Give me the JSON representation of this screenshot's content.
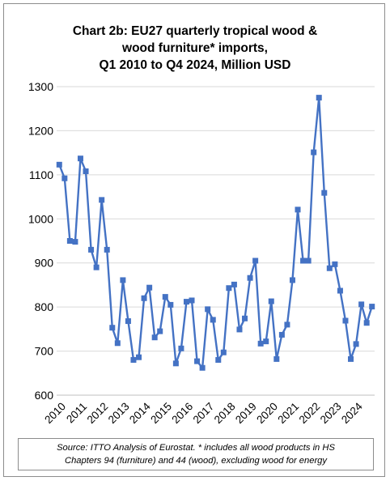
{
  "chart_data": {
    "type": "line",
    "title_lines": [
      "Chart 2b: EU27 quarterly tropical wood &",
      "wood furniture* imports,",
      "Q1 2010 to Q4 2024, Million USD"
    ],
    "xlabel": "",
    "ylabel": "",
    "ylim": [
      600,
      1300
    ],
    "yticks": [
      600,
      700,
      800,
      900,
      1000,
      1100,
      1200,
      1300
    ],
    "xtick_labels": [
      "2010",
      "2011",
      "2012",
      "2013",
      "2014",
      "2015",
      "2016",
      "2017",
      "2018",
      "2019",
      "2020",
      "2021",
      "2022",
      "2023",
      "2024"
    ],
    "grid": "horizontal",
    "legend": "none",
    "color": "#4472c4",
    "series": [
      {
        "values": [
          1123,
          1092,
          950,
          948,
          1137,
          1108,
          930,
          890,
          1043,
          930,
          753,
          718,
          861,
          768,
          680,
          686,
          820,
          844,
          731,
          745,
          823,
          805,
          672,
          706,
          812,
          815,
          677,
          662,
          795,
          771,
          680,
          697,
          843,
          851,
          749,
          774,
          866,
          905,
          717,
          722,
          813,
          682,
          737,
          760,
          861,
          1021,
          905,
          905,
          1151,
          1275,
          1059,
          888,
          897,
          837,
          769,
          682,
          716,
          806,
          764,
          801
        ]
      }
    ]
  },
  "source_lines": [
    "Source: ITTO Analysis of Eurostat. * includes all wood products in HS",
    "Chapters 94 (furniture) and 44 (wood), excluding wood for energy"
  ]
}
